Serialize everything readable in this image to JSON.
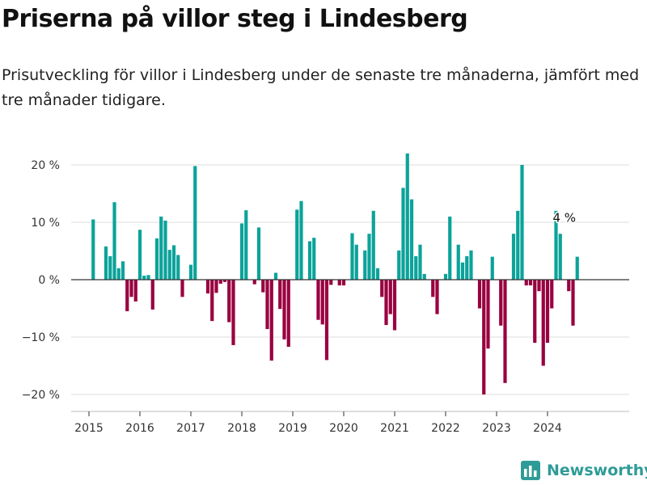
{
  "title": "Priserna på villor steg i Lindesberg",
  "subtitle": "Prisutveckling för villor i Lindesberg under de senaste tre månaderna, jämfört med tre månader tidigare.",
  "brand": {
    "name": "Newsworthy",
    "icon": "bar-chart-icon",
    "color": "#2f9b98"
  },
  "colors": {
    "positive": "#0ba39a",
    "negative": "#990040",
    "grid": "#dddddd",
    "zero_line": "#333333",
    "axis_text": "#333333"
  },
  "chart_data": {
    "type": "bar",
    "title": "",
    "xlabel": "",
    "ylabel": "",
    "ylim": [
      -24,
      24
    ],
    "y_ticks": [
      20,
      10,
      0,
      -10,
      -20
    ],
    "y_tick_labels": [
      "20 %",
      "10 %",
      "0 %",
      "−10 %",
      "−20 %"
    ],
    "x_ticks": [
      "2015",
      "2016",
      "2017",
      "2018",
      "2019",
      "2020",
      "2021",
      "2022",
      "2023",
      "2024"
    ],
    "grid": true,
    "start": "2015-01",
    "series": [
      {
        "values": [
          null,
          10.5,
          null,
          null,
          5.8,
          4.1,
          13.5,
          2.0,
          3.2,
          -5.5,
          -3.0,
          -3.8,
          8.7,
          0.7,
          0.8,
          -5.2,
          7.2,
          11.0,
          10.3,
          5.2,
          6.0,
          4.3,
          -3.0,
          null,
          2.6,
          19.8,
          null,
          null,
          -2.4,
          -7.2,
          -2.3,
          -0.7,
          -0.4,
          -7.4,
          -11.4,
          null,
          9.8,
          12.1,
          null,
          -0.8,
          9.1,
          -2.2,
          -8.6,
          -14.1,
          1.2,
          -5.1,
          -10.4,
          -11.7,
          null,
          12.2,
          13.7,
          null,
          6.7,
          7.3,
          -7.0,
          -7.8,
          -14.0,
          -0.9,
          null,
          -1.0,
          -1.0,
          null,
          8.1,
          6.1,
          null,
          5.1,
          8.0,
          12.0,
          2.0,
          -3.0,
          -7.9,
          -6.0,
          -8.8,
          5.1,
          16.0,
          22.0,
          14.0,
          4.1,
          6.1,
          1.0,
          null,
          -3.0,
          -6.0,
          null,
          1.0,
          11.0,
          null,
          6.1,
          3.0,
          4.1,
          5.1,
          null,
          -5.0,
          -20.0,
          -12.0,
          4.0,
          null,
          -8.0,
          -18.0,
          null,
          8.0,
          12.0,
          20.0,
          -1.0,
          -1.0,
          -11.0,
          -2.0,
          -15.0,
          -11.0,
          -5.0,
          12.0,
          8.0,
          null,
          -2.0,
          -8.0,
          4.0
        ]
      }
    ],
    "annotation": {
      "text": "4 %",
      "value": 4.0
    }
  }
}
